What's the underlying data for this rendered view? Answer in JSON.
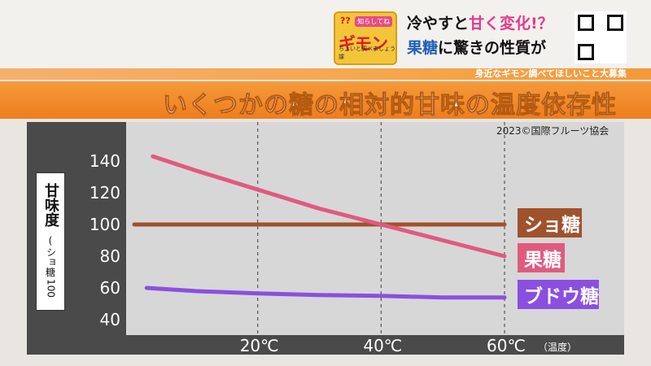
{
  "header": {
    "logo": {
      "qmark": "??",
      "tag": "知らしてね",
      "main": "ギモン",
      "sub": "ちょいと調べましょう課"
    },
    "headline": {
      "line1_a": "冷やすと",
      "line1_b": "甘く変化!？",
      "line2_a": "果糖",
      "line2_b": "に驚きの性質が"
    },
    "ticker": "身近なギモン調べてほしいこと大募集"
  },
  "title": "いくつかの糖の相対的甘味の温度依存性",
  "source": "2023©国際フルーツ協会",
  "ylabel": {
    "main": "甘味度",
    "paren_open": "(",
    "sub1": "ショ",
    "sub2": "糖",
    "sub3": "100",
    "paren_close": ")"
  },
  "chart_data": {
    "type": "line",
    "title": "いくつかの糖の相対的甘味の温度依存性",
    "ylabel": "甘味度（ショ糖100）",
    "xlabel": "温度",
    "x_unit_label": "（温度）",
    "xlim": [
      0,
      60
    ],
    "ylim": [
      40,
      145
    ],
    "x_ticks": [
      20,
      40,
      60
    ],
    "x_tick_labels": [
      "20℃",
      "40℃",
      "60℃"
    ],
    "y_ticks": [
      40,
      60,
      80,
      100,
      120,
      140
    ],
    "grid": "vertical dashed at 20, 40, 60",
    "series": [
      {
        "name": "ショ糖",
        "color": "#a0522d",
        "x": [
          0,
          60
        ],
        "y": [
          100,
          100
        ]
      },
      {
        "name": "果糖",
        "color": "#e05a7f",
        "x": [
          3,
          10,
          20,
          30,
          40,
          50,
          60
        ],
        "y": [
          143,
          134,
          122,
          110,
          100,
          90,
          80
        ]
      },
      {
        "name": "ブドウ糖",
        "color": "#8b4fe0",
        "x": [
          2,
          10,
          20,
          30,
          40,
          50,
          60
        ],
        "y": [
          60,
          58,
          56.5,
          55.5,
          55,
          54,
          54
        ]
      }
    ]
  }
}
